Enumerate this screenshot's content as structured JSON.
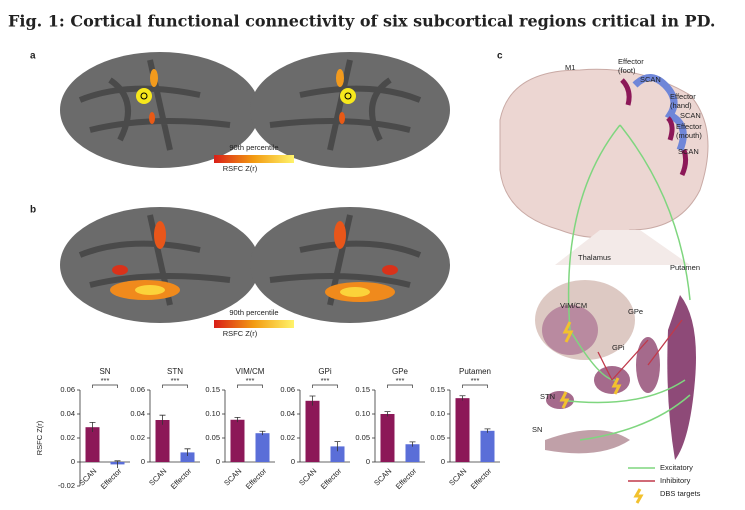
{
  "title": "Fig. 1: Cortical functional connectivity of six subcortical regions critical in PD.",
  "panel_a": {
    "label": "a",
    "colorbar": {
      "top": "90th percentile",
      "bottom": "RSFC Z(r)"
    }
  },
  "panel_b": {
    "label": "b",
    "colorbar": {
      "top": "90th percentile",
      "bottom": "RSFC Z(r)"
    }
  },
  "chart_data": [
    {
      "type": "bar",
      "title": "SN",
      "ylabel": "RSFC Z(r)",
      "categories": [
        "SCAN",
        "Effector"
      ],
      "values": [
        0.029,
        -0.002
      ],
      "errors": [
        0.004,
        0.003
      ],
      "colors": [
        "#8c1858",
        "#5a6ed8"
      ],
      "ylim": [
        -0.02,
        0.06
      ],
      "yticks": [
        -0.02,
        0,
        0.02,
        0.04,
        0.06
      ],
      "significance": "***"
    },
    {
      "type": "bar",
      "title": "STN",
      "categories": [
        "SCAN",
        "Effector"
      ],
      "values": [
        0.035,
        0.008
      ],
      "errors": [
        0.004,
        0.003
      ],
      "colors": [
        "#8c1858",
        "#5a6ed8"
      ],
      "ylim": [
        0,
        0.06
      ],
      "yticks": [
        0,
        0.02,
        0.04,
        0.06
      ],
      "significance": "***"
    },
    {
      "type": "bar",
      "title": "VIM/CM",
      "categories": [
        "SCAN",
        "Effector"
      ],
      "values": [
        0.088,
        0.06
      ],
      "errors": [
        0.005,
        0.004
      ],
      "colors": [
        "#8c1858",
        "#5a6ed8"
      ],
      "ylim": [
        0,
        0.15
      ],
      "yticks": [
        0,
        0.05,
        {
          "value": 0.1,
          "label": "0.10"
        },
        0.15
      ],
      "significance": "***"
    },
    {
      "type": "bar",
      "title": "GPi",
      "categories": [
        "SCAN",
        "Effector"
      ],
      "values": [
        0.051,
        0.013
      ],
      "errors": [
        0.004,
        0.004
      ],
      "colors": [
        "#8c1858",
        "#5a6ed8"
      ],
      "ylim": [
        0,
        0.06
      ],
      "yticks": [
        0,
        0.02,
        0.04,
        0.06
      ],
      "significance": "***"
    },
    {
      "type": "bar",
      "title": "GPe",
      "categories": [
        "SCAN",
        "Effector"
      ],
      "values": [
        0.1,
        0.037
      ],
      "errors": [
        0.005,
        0.005
      ],
      "colors": [
        "#8c1858",
        "#5a6ed8"
      ],
      "ylim": [
        0,
        0.15
      ],
      "yticks": [
        0,
        0.05,
        {
          "value": 0.1,
          "label": "0.10"
        },
        0.15
      ],
      "significance": "***"
    },
    {
      "type": "bar",
      "title": "Putamen",
      "categories": [
        "SCAN",
        "Effector"
      ],
      "values": [
        0.133,
        0.065
      ],
      "errors": [
        0.005,
        0.004
      ],
      "colors": [
        "#8c1858",
        "#5a6ed8"
      ],
      "ylim": [
        0,
        0.15
      ],
      "yticks": [
        0,
        0.05,
        {
          "value": 0.1,
          "label": "0.10"
        },
        0.15
      ],
      "significance": "***"
    }
  ],
  "panel_c": {
    "label": "c",
    "labels": [
      "M1",
      "Effector",
      "(foot)",
      "SCAN",
      "Effector",
      "(hand)",
      "SCAN",
      "Effector",
      "(mouth)",
      "SCAN",
      "Thalamus",
      "Putamen",
      "VIM/CM",
      "GPe",
      "GPi",
      "STN",
      "SN"
    ],
    "legend": [
      "Excitatory",
      "Inhibitory",
      "DBS targets"
    ]
  }
}
